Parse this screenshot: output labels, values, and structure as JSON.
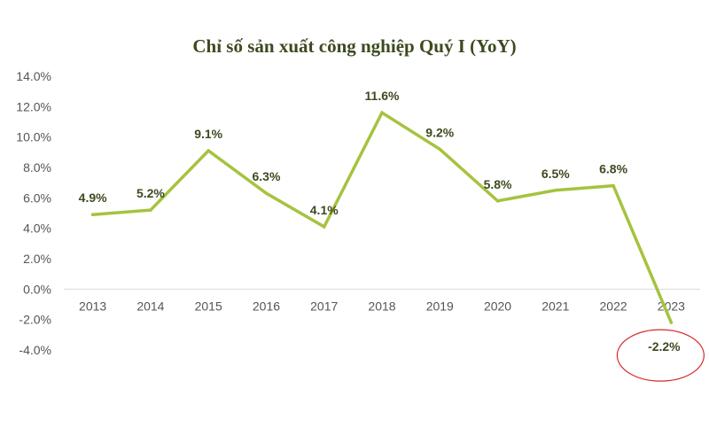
{
  "chart_data": {
    "type": "line",
    "title": "Chỉ số sản xuất công nghiệp Quý I (YoY)",
    "xlabel": "",
    "ylabel": "",
    "categories": [
      "2013",
      "2014",
      "2015",
      "2016",
      "2017",
      "2018",
      "2019",
      "2020",
      "2021",
      "2022",
      "2023"
    ],
    "series": [
      {
        "values": [
          4.9,
          5.2,
          9.1,
          6.3,
          4.1,
          11.6,
          9.2,
          5.8,
          6.5,
          6.8,
          -2.2
        ],
        "labels": [
          "4.9%",
          "5.2%",
          "9.1%",
          "6.3%",
          "4.1%",
          "11.6%",
          "9.2%",
          "5.8%",
          "6.5%",
          "6.8%",
          "-2.2%"
        ],
        "color": "#a5c33f"
      }
    ],
    "ylim": [
      -4,
      14
    ],
    "yticks": [
      14,
      12,
      10,
      8,
      6,
      4,
      2,
      0,
      -2,
      -4
    ],
    "ytick_labels": [
      "14.0%",
      "12.0%",
      "10.0%",
      "8.0%",
      "6.0%",
      "4.0%",
      "2.0%",
      "0.0%",
      "-2.0%",
      "-4.0%"
    ],
    "grid": false,
    "legend": "none",
    "highlight": {
      "category": "2023",
      "shape": "ellipse",
      "color": "#d62a2a"
    },
    "colors": {
      "title": "#3d4a1f",
      "data_label": "#3d4a1f",
      "axis": "#d9d9d9",
      "tick_label": "#555555"
    }
  }
}
